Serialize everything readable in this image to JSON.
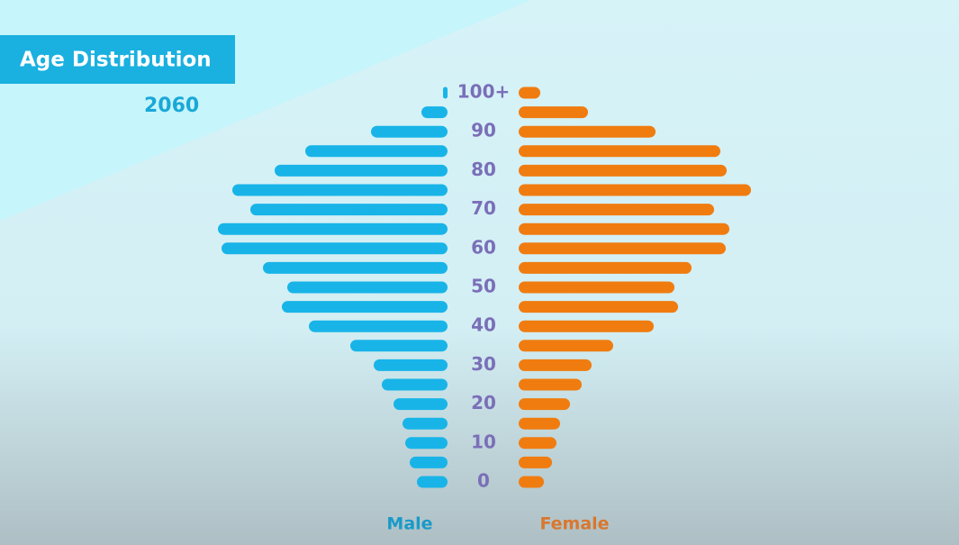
{
  "chart_data": {
    "type": "pyramid",
    "title": "Age Distribution",
    "subtitle": "2060",
    "categories": [
      "0",
      null,
      "10",
      null,
      "20",
      null,
      "30",
      null,
      "40",
      null,
      "50",
      null,
      "60",
      null,
      "70",
      null,
      "80",
      null,
      "90",
      null,
      "100+"
    ],
    "series": [
      {
        "name": "Male",
        "color": "#18b4e8",
        "values": [
          34,
          42,
          47,
          50,
          60,
          73,
          82,
          108,
          154,
          184,
          178,
          205,
          251,
          255,
          219,
          239,
          192,
          158,
          85,
          29,
          5
        ]
      },
      {
        "name": "Female",
        "color": "#f07c10",
        "values": [
          28,
          37,
          42,
          46,
          57,
          70,
          81,
          105,
          150,
          177,
          173,
          192,
          230,
          234,
          217,
          258,
          231,
          224,
          152,
          77,
          24
        ]
      }
    ]
  }
}
